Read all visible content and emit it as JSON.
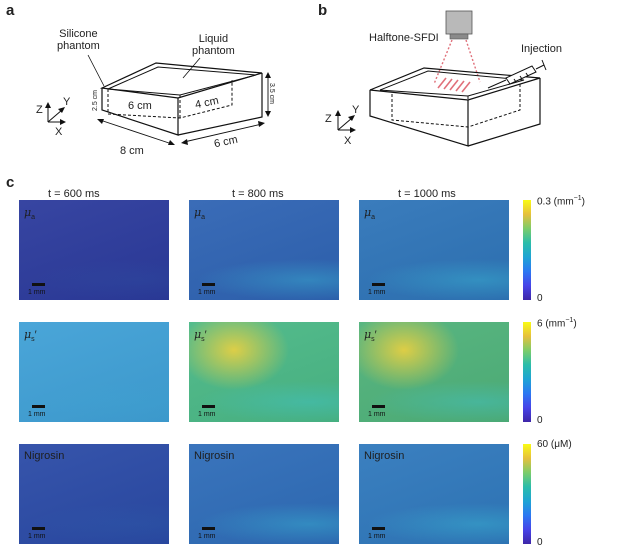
{
  "panel_a": {
    "letter": "a",
    "silicone_label_line1": "Silicone",
    "silicone_label_line2": "phantom",
    "liquid_label_line1": "Liquid",
    "liquid_label_line2": "phantom",
    "dim_inner_width": "6 cm",
    "dim_inner_depth": "4 cm",
    "dim_inner_height": "2.5 cm",
    "dim_outer_height": "3.5 cm",
    "dim_outer_width": "8 cm",
    "dim_outer_depth": "6 cm",
    "axis_z": "Z",
    "axis_y": "Y",
    "axis_x": "X"
  },
  "panel_b": {
    "letter": "b",
    "halftone_label": "Halftone-SFDI",
    "injection_label": "Injection",
    "axis_z": "Z",
    "axis_y": "Y",
    "axis_x": "X"
  },
  "panel_c": {
    "letter": "c",
    "times": [
      "t = 600 ms",
      "t = 800 ms",
      "t = 1000 ms"
    ],
    "scalebar_label": "1 mm",
    "rows": [
      {
        "label_sym": "μ",
        "label_sub": "a",
        "label_prime": "",
        "cbar_max": "0.3 (mm",
        "cbar_max_exp": "−1",
        "cbar_max_end": ")",
        "cbar_min": "0",
        "colors": [
          "#2b3a9c",
          "#2e63b3",
          "#2e74b8"
        ]
      },
      {
        "label_sym": "μ",
        "label_sub": "s",
        "label_prime": "′",
        "cbar_max": "6 (mm",
        "cbar_max_exp": "−1",
        "cbar_max_end": ")",
        "cbar_min": "0",
        "colors": [
          "#3fa0d6",
          "#4ab886",
          "#4fb27a"
        ]
      },
      {
        "label_sym": "Nigrosin",
        "label_sub": "",
        "label_prime": "",
        "cbar_max": "60 (μM)",
        "cbar_max_exp": "",
        "cbar_max_end": "",
        "cbar_min": "0",
        "colors": [
          "#2a4aa6",
          "#2e6cb8",
          "#2f78bc"
        ]
      }
    ]
  },
  "colormap": [
    "#3e26a8",
    "#4743e8",
    "#2c78f2",
    "#1fa4d4",
    "#2bbdaa",
    "#7ccc6a",
    "#e6c03c",
    "#f9fb15"
  ]
}
